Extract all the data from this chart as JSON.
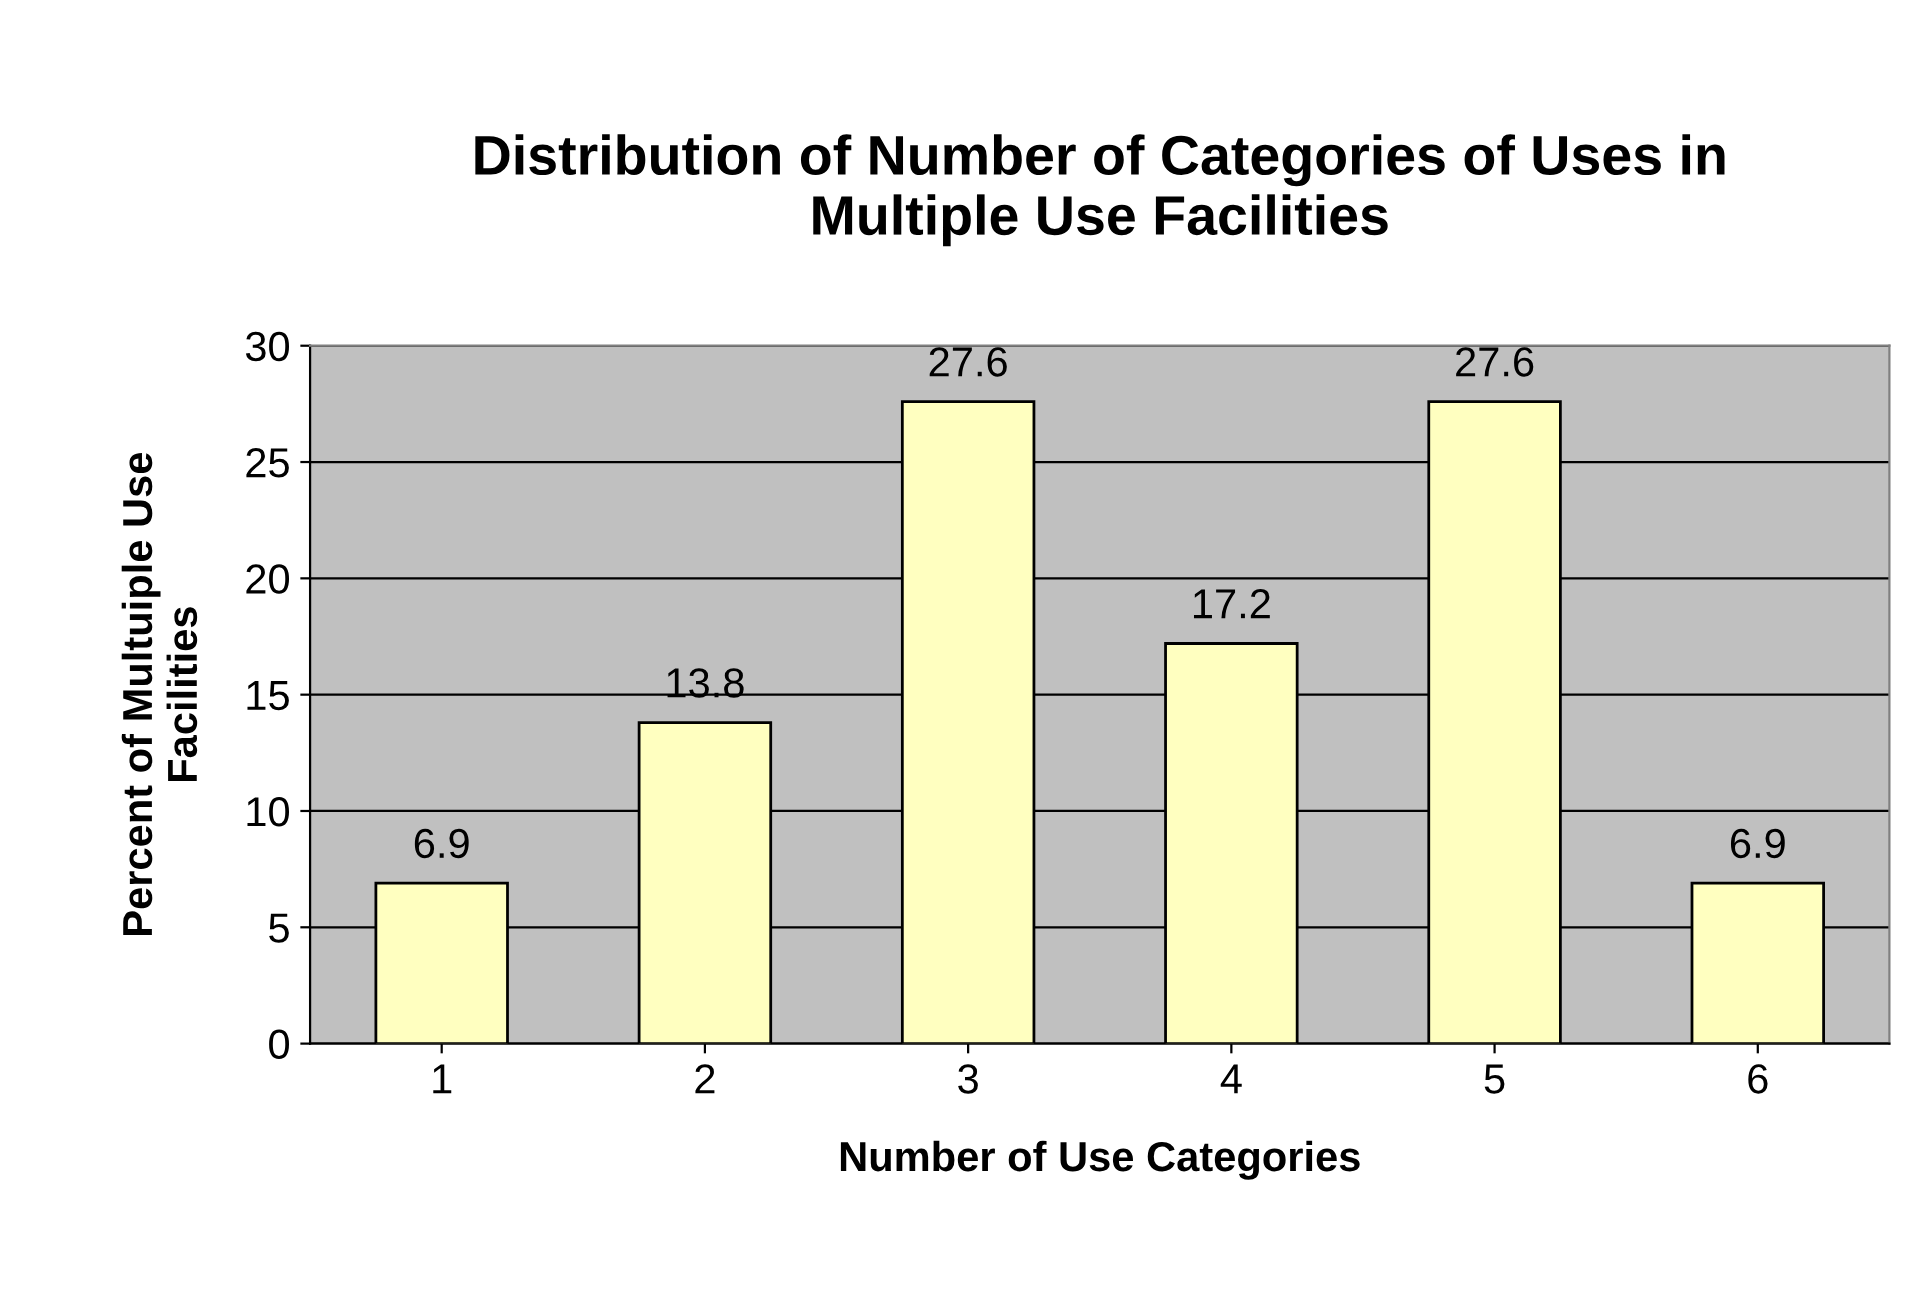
{
  "chart_data": {
    "type": "bar",
    "title": "Distribution of Number of Categories of Uses in\nMultiple Use Facilities",
    "xlabel": "Number of Use Categories",
    "ylabel": "Percent of Multuiple Use\nFacilities",
    "categories": [
      "1",
      "2",
      "3",
      "4",
      "5",
      "6"
    ],
    "values": [
      6.9,
      13.8,
      27.6,
      17.2,
      27.6,
      6.9
    ],
    "color": "#ffffc0",
    "ylim": [
      0,
      30
    ],
    "yticks": [
      0,
      5,
      10,
      15,
      20,
      25,
      30
    ],
    "grid": "y",
    "data_labels": true,
    "legend": false
  }
}
